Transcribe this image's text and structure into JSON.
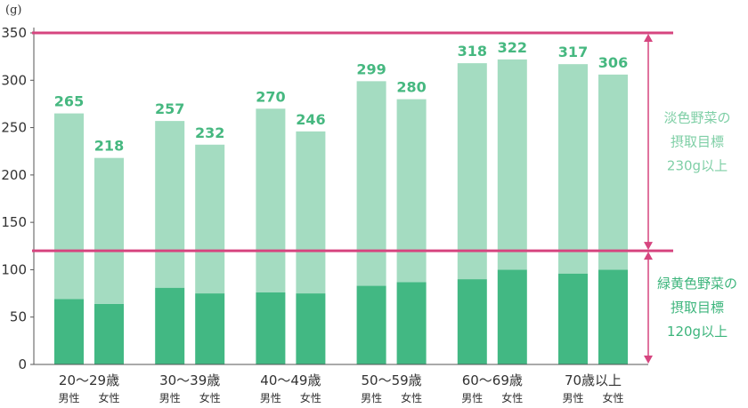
{
  "chart_data": {
    "type": "bar",
    "unit_label": "(g)",
    "ylim": [
      0,
      350
    ],
    "yticks": [
      0,
      50,
      100,
      150,
      200,
      250,
      300,
      350
    ],
    "grid": false,
    "categories": [
      "20〜29歳",
      "30〜39歳",
      "40〜49歳",
      "50〜59歳",
      "60〜69歳",
      "70歳以上"
    ],
    "sexes": [
      "男性",
      "女性"
    ],
    "stacking": "stacked",
    "series": [
      {
        "key": "green_yellow",
        "color": "#42b883",
        "values": [
          [
            69,
            64
          ],
          [
            81,
            75
          ],
          [
            76,
            75
          ],
          [
            83,
            87
          ],
          [
            90,
            100
          ],
          [
            96,
            100
          ]
        ]
      },
      {
        "key": "light",
        "color": "#a4dcc1",
        "values": [
          [
            196,
            154
          ],
          [
            176,
            157
          ],
          [
            194,
            171
          ],
          [
            216,
            193
          ],
          [
            228,
            222
          ],
          [
            221,
            206
          ]
        ]
      }
    ],
    "totals": [
      [
        265,
        218
      ],
      [
        257,
        232
      ],
      [
        270,
        246
      ],
      [
        299,
        280
      ],
      [
        318,
        322
      ],
      [
        317,
        306
      ]
    ],
    "total_label_color": "#46b880",
    "reference_lines": [
      {
        "value": 350,
        "color": "#d6457f"
      },
      {
        "value": 120,
        "color": "#d6457f"
      }
    ],
    "annotations": [
      {
        "lines": [
          "淡色野菜の",
          "摂取目標",
          "230g以上"
        ],
        "color": "#7fcfa6"
      },
      {
        "lines": [
          "緑黄色野菜の",
          "摂取目標",
          "120g以上"
        ],
        "color": "#3db57c"
      }
    ],
    "arrow_color": "#d6457f"
  }
}
